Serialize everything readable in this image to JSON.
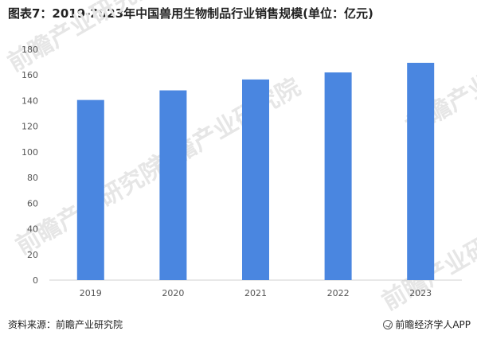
{
  "header": {
    "title": "图表7：2019-2023年中国兽用生物制品行业销售规模(单位：亿元)"
  },
  "watermark_text": "前瞻产业研究院",
  "footer": {
    "source": "资料来源：前瞻产业研究院",
    "brand": "前瞻经济学人APP",
    "brand_icon": "qianzhan-logo-icon"
  },
  "colors": {
    "bar": "#4a86e0",
    "axis": "#d0d0d0",
    "text": "#555555"
  },
  "chart_data": {
    "type": "bar",
    "title": "图表7：2019-2023年中国兽用生物制品行业销售规模(单位：亿元)",
    "categories": [
      "2019",
      "2020",
      "2021",
      "2022",
      "2023"
    ],
    "series": [
      {
        "values": [
          140.5,
          148,
          156.5,
          162,
          169.5
        ]
      }
    ],
    "ylim": [
      0,
      180
    ],
    "yticks": [
      0,
      20,
      40,
      60,
      80,
      100,
      120,
      140,
      160,
      180
    ],
    "xlabel": "",
    "ylabel": "",
    "grid": false,
    "legend": "none"
  }
}
